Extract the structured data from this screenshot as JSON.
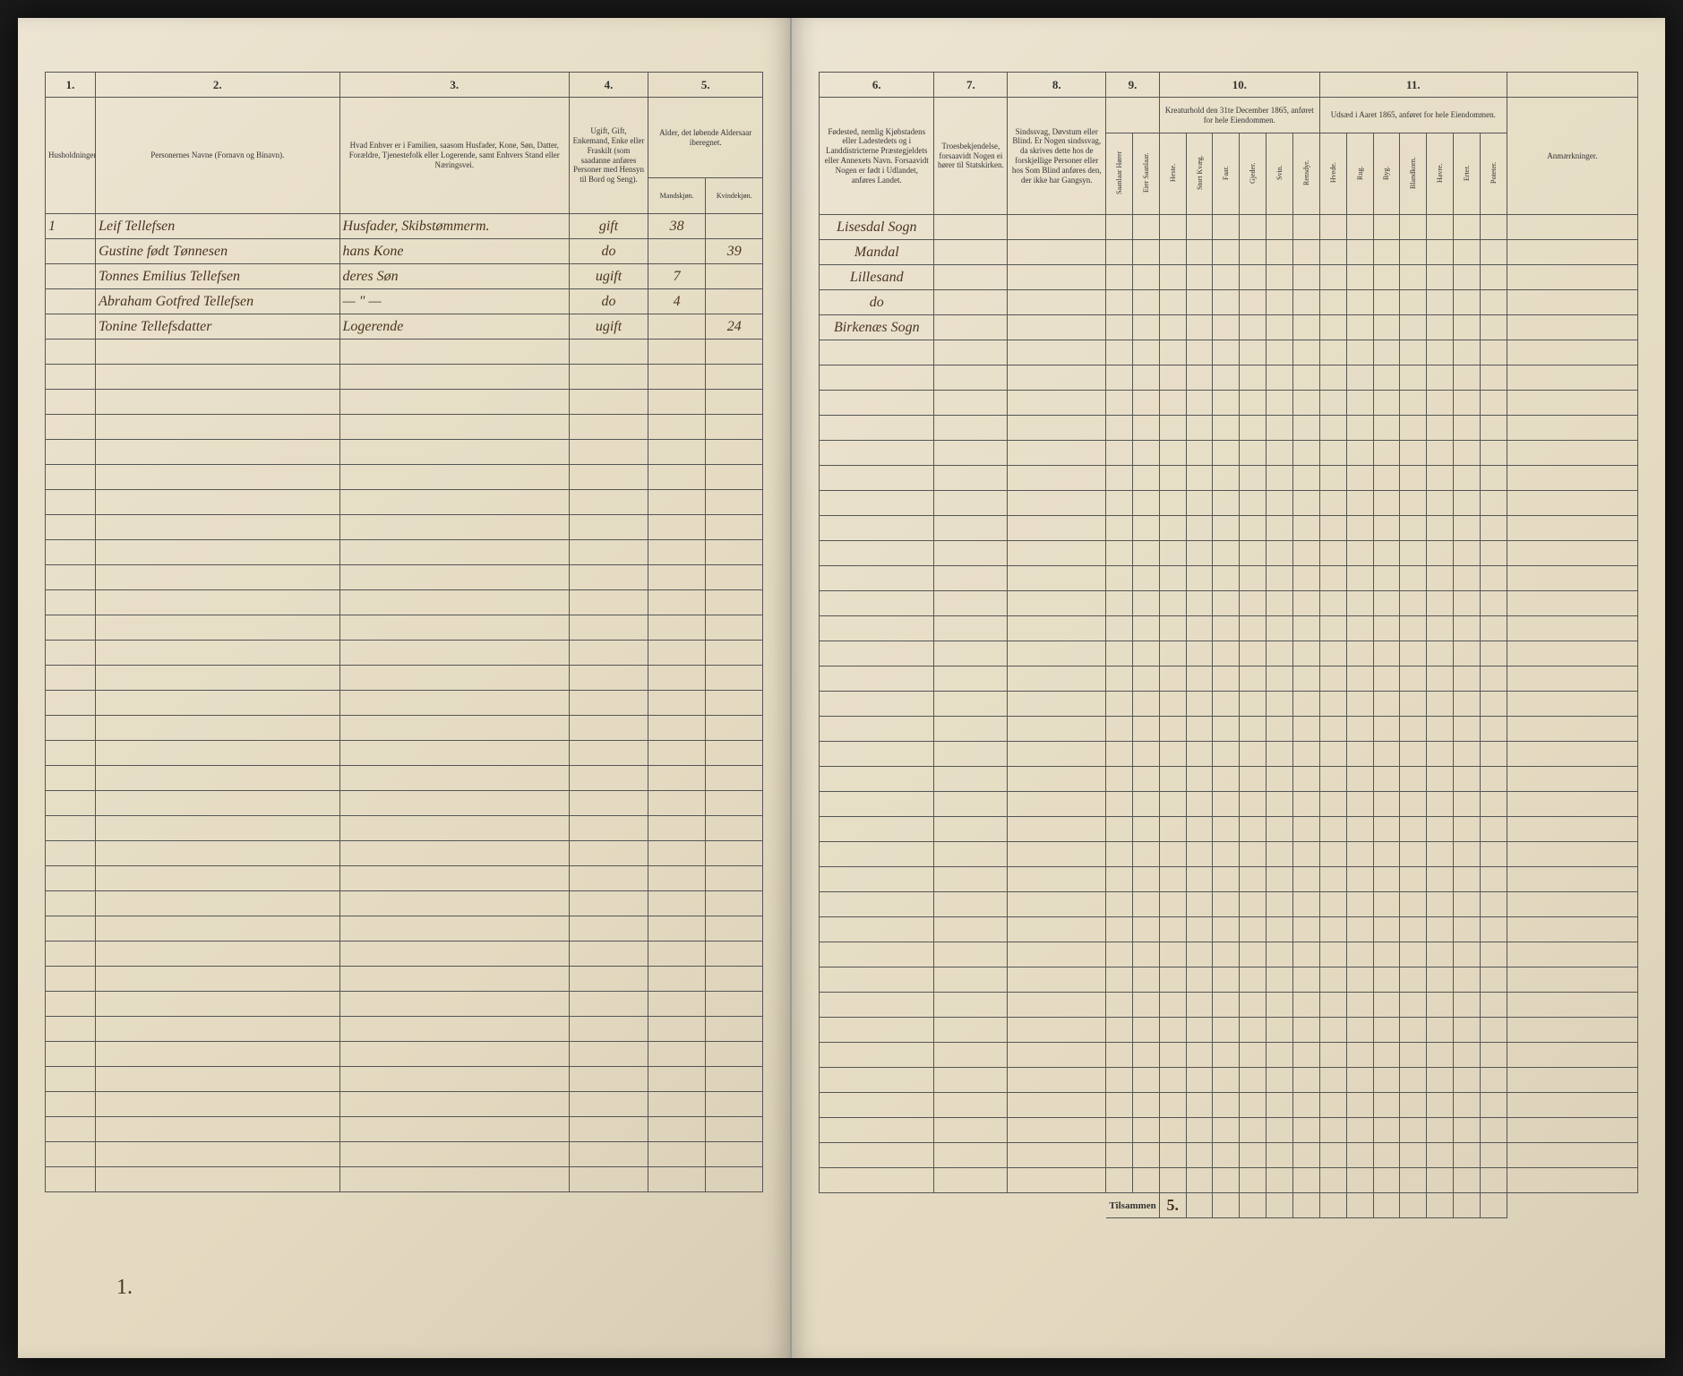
{
  "left": {
    "colnums": [
      "1.",
      "2.",
      "3.",
      "4.",
      "5."
    ],
    "headers": {
      "c1": "Husholdninger.",
      "c2": "Personernes Navne (Fornavn og Binavn).",
      "c3": "Hvad Enhver er i Familien, saasom Husfader, Kone, Søn, Datter, Forældre, Tjenestefolk eller Logerende, samt Enhvers Stand eller Næringsvei.",
      "c4": "Ugift, Gift, Enkemand, Enke eller Fraskilt (som saadanne anføres Personer med Hensyn til Bord og Seng).",
      "c5": "Alder, det løbende Aldersaar iberegnet.",
      "c5a": "Mandskjøn.",
      "c5b": "Kvindekjøn."
    },
    "rows": [
      {
        "n": "1",
        "name": "Leif Tellefsen",
        "role": "Husfader, Skibstømmerm.",
        "status": "gift",
        "m": "38",
        "f": ""
      },
      {
        "n": "",
        "name": "Gustine født Tønnesen",
        "role": "hans Kone",
        "status": "do",
        "m": "",
        "f": "39"
      },
      {
        "n": "",
        "name": "Tonnes Emilius Tellefsen",
        "role": "deres Søn",
        "status": "ugift",
        "m": "7",
        "f": ""
      },
      {
        "n": "",
        "name": "Abraham Gotfred Tellefsen",
        "role": "— \" —",
        "status": "do",
        "m": "4",
        "f": ""
      },
      {
        "n": "",
        "name": "Tonine Tellefsdatter",
        "role": "Logerende",
        "status": "ugift",
        "m": "",
        "f": "24"
      }
    ],
    "footer": "1."
  },
  "right": {
    "colnums": [
      "6.",
      "7.",
      "8.",
      "9.",
      "10.",
      "11."
    ],
    "headers": {
      "c6": "Fødested, nemlig Kjøbstadens eller Ladestedets og i Landdistricterne Præstegjeldets eller Annexets Navn. Forsaavidt Nogen er født i Udlandet, anføres Landet.",
      "c7": "Troesbekjendelse, forsaavidt Nogen ei hører til Statskirken.",
      "c8": "Sindssvag, Døvstum eller Blind. Er Nogen sindssvag, da skrives dette hos de forskjellige Personer eller hos Som Blind anføres den, der ikke har Gangsyn.",
      "c9a": "Saanlaar Hører",
      "c9b": "Eier Saanlaar.",
      "c10": "Kreaturhold den 31te December 1865, anføret for hele Eiendommen.",
      "c11": "Udsæd i Aaret 1865, anføret for hele Eiendommen.",
      "c12": "Anmærkninger.",
      "livestock": [
        "Heste.",
        "Stort Kvæg.",
        "Faar.",
        "Gjeder.",
        "Svin.",
        "Rensdyr."
      ],
      "crops": [
        "Hvede.",
        "Rug.",
        "Byg.",
        "Blandkorn.",
        "Havre.",
        "Erter.",
        "Poteter."
      ]
    },
    "rows": [
      {
        "place": "Lisesdal Sogn"
      },
      {
        "place": "Mandal"
      },
      {
        "place": "Lillesand"
      },
      {
        "place": "do"
      },
      {
        "place": "Birkenæs Sogn"
      }
    ],
    "summary_label": "Tilsammen",
    "summary_value": "5."
  },
  "colors": {
    "page_bg": "#e8dfc8",
    "border": "#555555",
    "ink": "#4a3520",
    "print": "#333333"
  },
  "empty_rows": 34
}
